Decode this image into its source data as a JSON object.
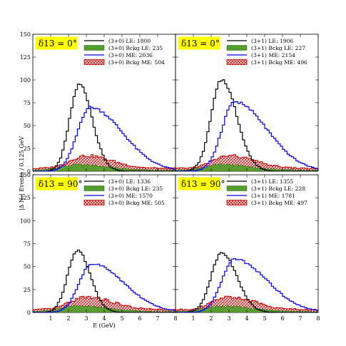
{
  "figure": {
    "ylabel": "|Δ N_{e}| Events / 0.125 GeV",
    "xlabel": "E (GeV)"
  },
  "chart_data": [
    {
      "type": "line",
      "panel": "top-left",
      "badge": "δ13 = 0°",
      "ylim": [
        0,
        150
      ],
      "xlim": [
        0,
        8
      ],
      "yticks": [
        "0",
        "25",
        "50",
        "75",
        "100",
        "125",
        "150"
      ],
      "xticks": [],
      "legend_position": "top-right",
      "series": [
        {
          "name": "(3+0) LE: 1800",
          "style": "line",
          "color": "#000000",
          "peak": 95,
          "mean": 2.62,
          "sigma": 0.55,
          "skew": 1.3,
          "base": 0
        },
        {
          "name": "(3+0) Bckg LE: 235",
          "style": "fill-green",
          "color": "#4d9a28",
          "peak": 6,
          "mean": 2.6,
          "sigma": 1.0,
          "skew": 1.6,
          "base": 1
        },
        {
          "name": "(3+0) ME: 2036",
          "style": "line",
          "color": "#0000ff",
          "peak": 70,
          "mean": 3.2,
          "sigma": 0.7,
          "skew": 2.6,
          "base": 0
        },
        {
          "name": "(3+0) Bckg ME: 504",
          "style": "hatch-red",
          "color": "#cc0000",
          "peak": 14,
          "mean": 3.0,
          "sigma": 0.9,
          "skew": 1.6,
          "base": 3
        }
      ]
    },
    {
      "type": "line",
      "panel": "top-right",
      "badge": "δ13 = 0°",
      "ylim": [
        0,
        150
      ],
      "xlim": [
        0,
        8
      ],
      "yticks": [],
      "xticks": [],
      "legend_position": "top-right",
      "series": [
        {
          "name": "(3+1) LE: 1906",
          "style": "line",
          "color": "#000000",
          "peak": 100,
          "mean": 2.6,
          "sigma": 0.6,
          "skew": 1.4,
          "base": 0
        },
        {
          "name": "(3+1) Bckg LE: 227",
          "style": "fill-green",
          "color": "#4d9a28",
          "peak": 6,
          "mean": 2.6,
          "sigma": 1.0,
          "skew": 1.6,
          "base": 1
        },
        {
          "name": "(3+1) ME: 2154",
          "style": "line",
          "color": "#0000ff",
          "peak": 76,
          "mean": 3.3,
          "sigma": 0.7,
          "skew": 2.6,
          "base": 0
        },
        {
          "name": "(3+1) Bckg ME: 496",
          "style": "hatch-red",
          "color": "#cc0000",
          "peak": 14,
          "mean": 3.0,
          "sigma": 0.9,
          "skew": 1.6,
          "base": 3
        }
      ]
    },
    {
      "type": "line",
      "panel": "bottom-left",
      "badge": "δ13 = 90°",
      "ylim": [
        0,
        150
      ],
      "xlim": [
        0,
        8
      ],
      "yticks": [
        "0",
        "25",
        "50",
        "75",
        "100",
        "125",
        "150"
      ],
      "xticks": [
        "1",
        "2",
        "3",
        "4",
        "5",
        "6",
        "7",
        "8"
      ],
      "legend_position": "top-right",
      "series": [
        {
          "name": "(3+0) LE: 1336",
          "style": "line",
          "color": "#000000",
          "peak": 68,
          "mean": 2.5,
          "sigma": 0.55,
          "skew": 1.3,
          "base": 0
        },
        {
          "name": "(3+0) Bckg LE: 235",
          "style": "fill-green",
          "color": "#4d9a28",
          "peak": 6,
          "mean": 2.6,
          "sigma": 1.0,
          "skew": 1.6,
          "base": 1
        },
        {
          "name": "(3+0) ME: 1570",
          "style": "line",
          "color": "#0000ff",
          "peak": 53,
          "mean": 3.3,
          "sigma": 0.7,
          "skew": 2.6,
          "base": 0
        },
        {
          "name": "(3+0) Bckg ME: 505",
          "style": "hatch-red",
          "color": "#cc0000",
          "peak": 14,
          "mean": 3.0,
          "sigma": 0.9,
          "skew": 1.6,
          "base": 3
        }
      ]
    },
    {
      "type": "line",
      "panel": "bottom-right",
      "badge": "δ13 = 90°",
      "ylim": [
        0,
        150
      ],
      "xlim": [
        0,
        8
      ],
      "yticks": [],
      "xticks": [
        "1",
        "2",
        "3",
        "4",
        "5",
        "6",
        "7",
        "8"
      ],
      "legend_position": "top-right",
      "series": [
        {
          "name": "(3+1) LE: 1355",
          "style": "line",
          "color": "#000000",
          "peak": 65,
          "mean": 2.6,
          "sigma": 0.6,
          "skew": 1.4,
          "base": 0
        },
        {
          "name": "(3+1) Bckg LE: 228",
          "style": "fill-green",
          "color": "#4d9a28",
          "peak": 6,
          "mean": 2.6,
          "sigma": 1.0,
          "skew": 1.6,
          "base": 1
        },
        {
          "name": "(3+1) ME: 1781",
          "style": "line",
          "color": "#0000ff",
          "peak": 58,
          "mean": 3.3,
          "sigma": 0.7,
          "skew": 2.6,
          "base": 0
        },
        {
          "name": "(3+1) Bckg ME: 497",
          "style": "hatch-red",
          "color": "#cc0000",
          "peak": 14,
          "mean": 3.0,
          "sigma": 0.9,
          "skew": 1.6,
          "base": 3
        }
      ]
    }
  ]
}
